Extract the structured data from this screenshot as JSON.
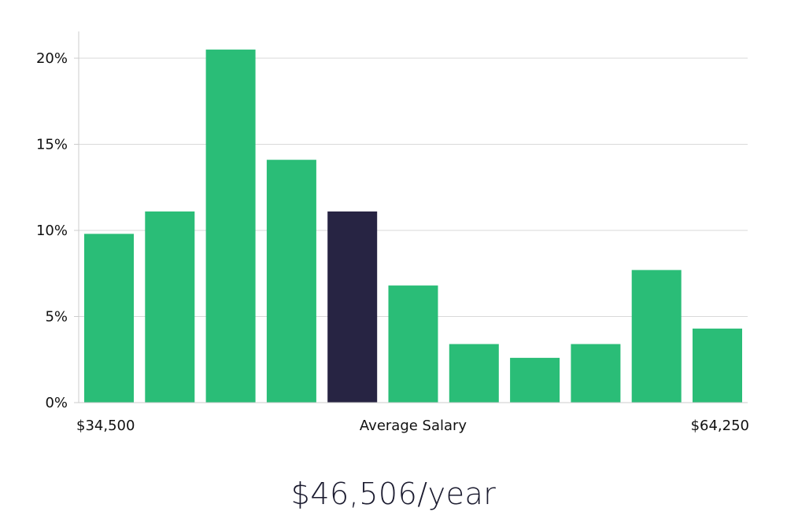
{
  "chart_data": {
    "type": "bar",
    "values": [
      9.8,
      11.1,
      20.5,
      14.1,
      11.1,
      6.8,
      3.4,
      2.6,
      3.4,
      7.7,
      4.3
    ],
    "highlight_index": 4,
    "ylim": [
      0,
      21.5
    ],
    "yticks": [
      0,
      5,
      10,
      15,
      20
    ],
    "ytick_labels": [
      "0%",
      "5%",
      "10%",
      "15%",
      "20%"
    ],
    "x_min_label": "$34,500",
    "x_mid_label": "Average Salary",
    "x_max_label": "$64,250",
    "grid": true,
    "colors": {
      "bar": "#2abd77",
      "highlight": "#272443",
      "grid": "#d9d9d9",
      "axis": "#cccccc"
    }
  },
  "salary_display": "$46,506/year"
}
